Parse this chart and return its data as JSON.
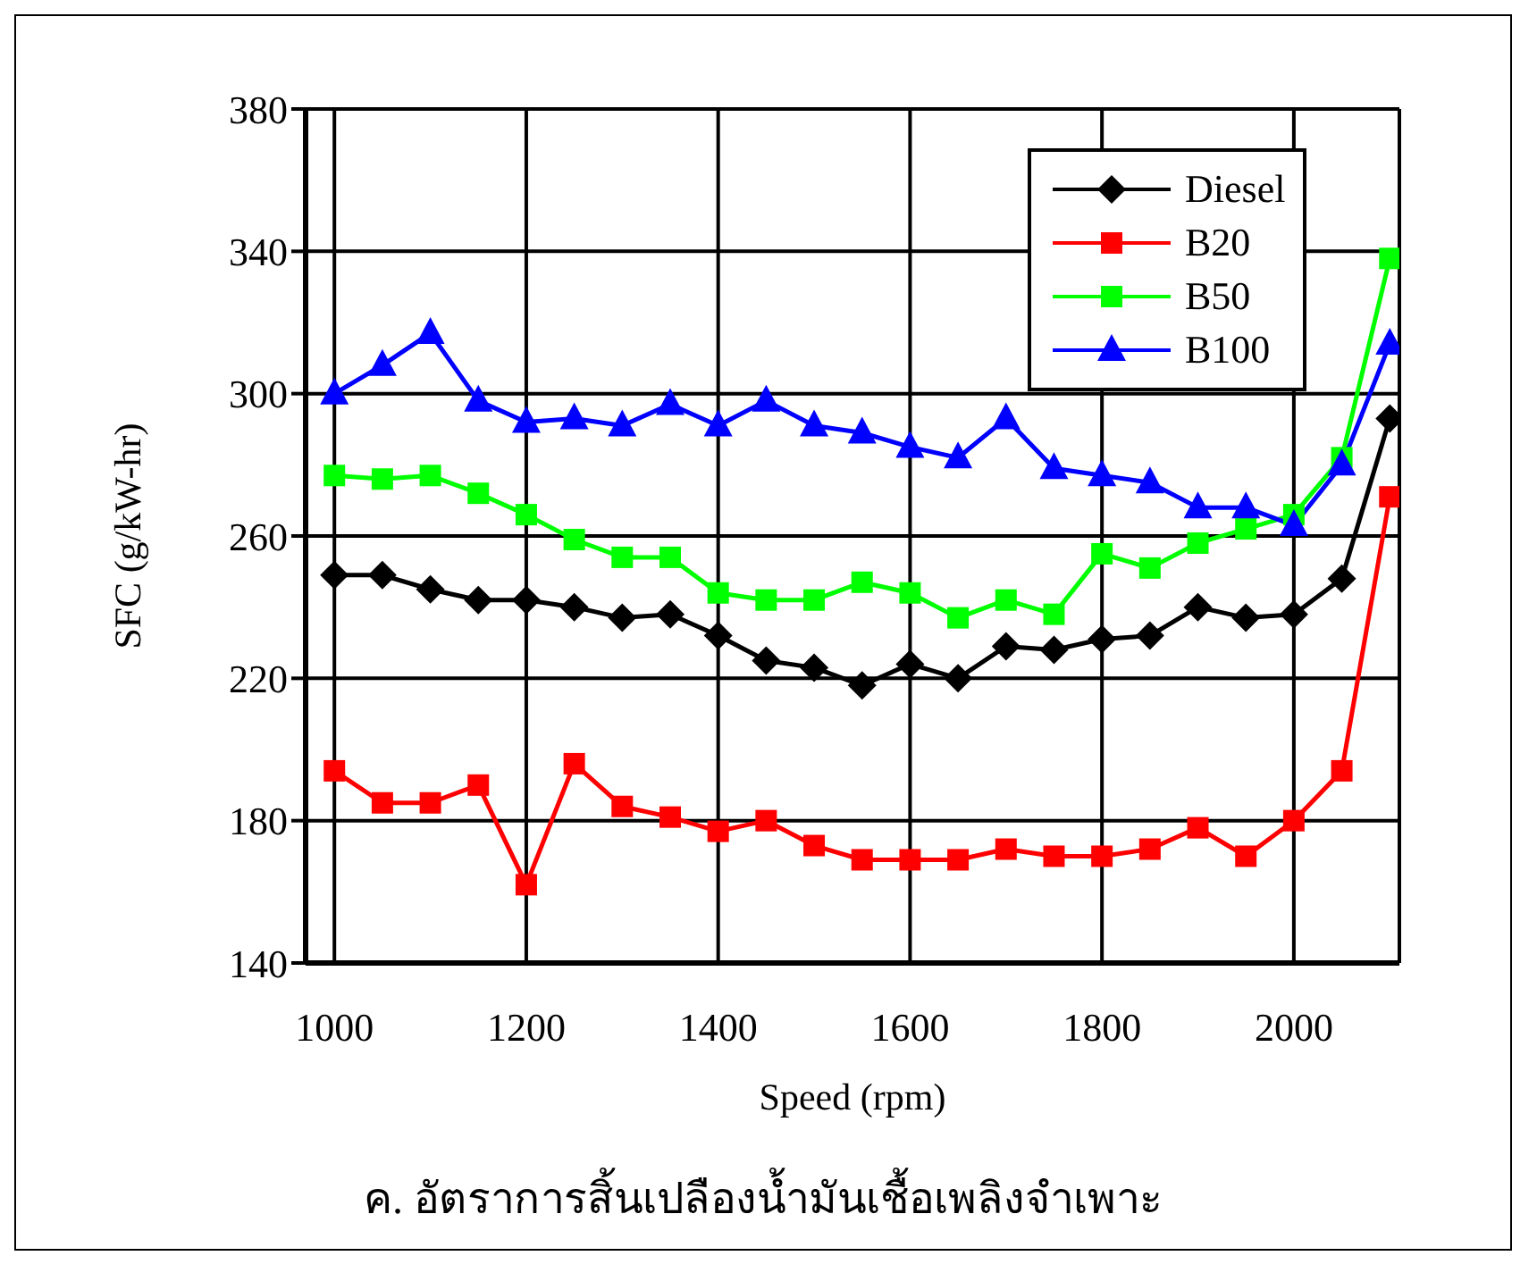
{
  "chart_data": {
    "type": "line",
    "xlabel": "Speed (rpm)",
    "ylabel": "SFC (g/kW-hr)",
    "annotations": [
      "ค. อัตราการสิ้นเปลืองน้ำมันเชื้อเพลิงจำเพาะ"
    ],
    "x": [
      1000,
      1050,
      1100,
      1150,
      1200,
      1250,
      1300,
      1350,
      1400,
      1450,
      1500,
      1550,
      1600,
      1650,
      1700,
      1750,
      1800,
      1850,
      1900,
      1950,
      2000,
      2050,
      2100
    ],
    "series": [
      {
        "name": "Diesel",
        "color": "#000000",
        "marker": "diamond",
        "values": [
          249,
          249,
          245,
          242,
          242,
          240,
          237,
          238,
          232,
          225,
          223,
          218,
          224,
          220,
          229,
          228,
          231,
          232,
          240,
          237,
          238,
          248,
          293
        ]
      },
      {
        "name": "B20",
        "color": "#ff0000",
        "marker": "square",
        "values": [
          194,
          185,
          185,
          190,
          162,
          196,
          184,
          181,
          177,
          180,
          173,
          169,
          169,
          169,
          172,
          170,
          170,
          172,
          178,
          170,
          180,
          194,
          271
        ]
      },
      {
        "name": "B50",
        "color": "#00ff00",
        "marker": "square",
        "values": [
          277,
          276,
          277,
          272,
          266,
          259,
          254,
          254,
          244,
          242,
          242,
          247,
          244,
          237,
          242,
          238,
          255,
          251,
          258,
          262,
          266,
          282,
          338
        ]
      },
      {
        "name": "B100",
        "color": "#0000ff",
        "marker": "triangle",
        "values": [
          300,
          308,
          317,
          298,
          292,
          293,
          291,
          297,
          291,
          298,
          291,
          289,
          285,
          282,
          293,
          279,
          277,
          275,
          268,
          268,
          263,
          280,
          314
        ]
      }
    ],
    "xlim": [
      970,
      2110
    ],
    "xticks": [
      1000,
      1200,
      1400,
      1600,
      1800,
      2000
    ],
    "ylim": [
      140,
      380
    ],
    "yticks": [
      140,
      180,
      220,
      260,
      300,
      340,
      380
    ],
    "grid": true,
    "legend": "top right",
    "line_style": "solid"
  }
}
